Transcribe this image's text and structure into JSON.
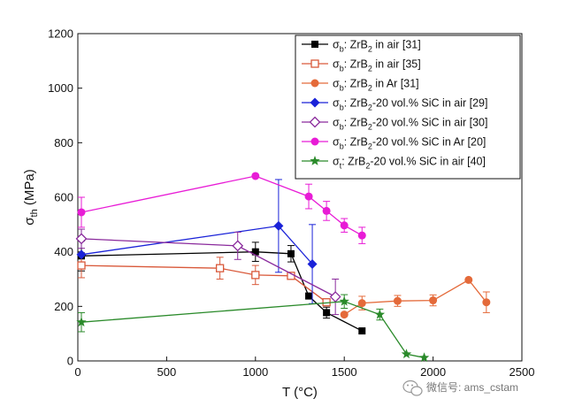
{
  "chart_data": {
    "type": "line",
    "xlabel": "T (°C)",
    "ylabel": "σth (MPa)",
    "ylabel_main": "σ",
    "ylabel_sub": "th",
    "ylabel_unit": " (MPa)",
    "xlim": [
      0,
      2500
    ],
    "ylim": [
      0,
      1200
    ],
    "xticks": [
      0,
      500,
      1000,
      1500,
      2000,
      2500
    ],
    "yticks": [
      0,
      200,
      400,
      600,
      800,
      1000,
      1200
    ],
    "grid": false,
    "legend_position": "top-right",
    "series": [
      {
        "name": "σb: ZrB2 in air [31]",
        "label_sym": "σ",
        "label_sub": "b",
        "label_mat": ": ZrB",
        "label_mat_sub": "2",
        "label_rest": " in air [31]",
        "color": "#000000",
        "marker": "square-filled",
        "x": [
          20,
          1000,
          1200,
          1300,
          1400,
          1600
        ],
        "y": [
          385,
          400,
          393,
          238,
          177,
          110
        ],
        "err": [
          55,
          35,
          30,
          0,
          20,
          0
        ]
      },
      {
        "name": "σb: ZrB2 in air [35]",
        "label_sym": "σ",
        "label_sub": "b",
        "label_mat": ": ZrB",
        "label_mat_sub": "2",
        "label_rest": " in air [35]",
        "color": "#d9593a",
        "marker": "square-open",
        "x": [
          20,
          800,
          1000,
          1200,
          1400
        ],
        "y": [
          350,
          340,
          315,
          312,
          215
        ],
        "err": [
          45,
          40,
          35,
          0,
          0
        ]
      },
      {
        "name": "σb: ZrB2 in Ar [31]",
        "label_sym": "σ",
        "label_sub": "b",
        "label_mat": ": ZrB",
        "label_mat_sub": "2",
        "label_rest": " in Ar [31]",
        "color": "#e46a3a",
        "marker": "circle-filled",
        "x": [
          1500,
          1600,
          1800,
          2000,
          2200,
          2300
        ],
        "y": [
          170,
          212,
          220,
          222,
          297,
          215
        ],
        "err": [
          0,
          25,
          20,
          20,
          0,
          38
        ]
      },
      {
        "name": "σb: ZrB2-20 vol.% SiC in air [29]",
        "label_sym": "σ",
        "label_sub": "b",
        "label_mat": ": ZrB",
        "label_mat_sub": "2",
        "label_rest": "-20 vol.% SiC in air [29]",
        "color": "#1a22d8",
        "marker": "diamond-filled",
        "x": [
          20,
          1130,
          1320
        ],
        "y": [
          390,
          495,
          355
        ],
        "err": [
          0,
          170,
          145
        ]
      },
      {
        "name": "σb: ZrB2-20 vol.% SiC in air [30]",
        "label_sym": "σ",
        "label_sub": "b",
        "label_mat": ": ZrB",
        "label_mat_sub": "2",
        "label_rest": "-20 vol.% SiC in air [30]",
        "color": "#8a2a9c",
        "marker": "diamond-open",
        "x": [
          20,
          900,
          1450
        ],
        "y": [
          448,
          422,
          235
        ],
        "err": [
          35,
          50,
          65
        ]
      },
      {
        "name": "σb: ZrB2-20 vol.% SiC in Ar [20]",
        "label_sym": "σ",
        "label_sub": "b",
        "label_mat": ": ZrB",
        "label_mat_sub": "2",
        "label_rest": "-20 vol.% SiC in Ar [20]",
        "color": "#e81cd6",
        "marker": "circle-filled",
        "x": [
          20,
          1000,
          1300,
          1400,
          1500,
          1600
        ],
        "y": [
          545,
          678,
          603,
          550,
          497,
          460
        ],
        "err": [
          55,
          0,
          45,
          35,
          25,
          30
        ]
      },
      {
        "name": "σt: ZrB2-20 vol.% SiC in air [40]",
        "label_sym": "σ",
        "label_sub": "t",
        "label_mat": ": ZrB",
        "label_mat_sub": "2",
        "label_rest": "-20 vol.% SiC in air [40]",
        "color": "#2a8a2a",
        "marker": "star-filled",
        "x": [
          20,
          1500,
          1700,
          1850,
          1950
        ],
        "y": [
          142,
          218,
          170,
          25,
          12
        ],
        "err": [
          35,
          25,
          20,
          0,
          0
        ]
      }
    ]
  },
  "watermark": {
    "icon": "wechat-icon",
    "text": "微信号: ams_cstam"
  }
}
